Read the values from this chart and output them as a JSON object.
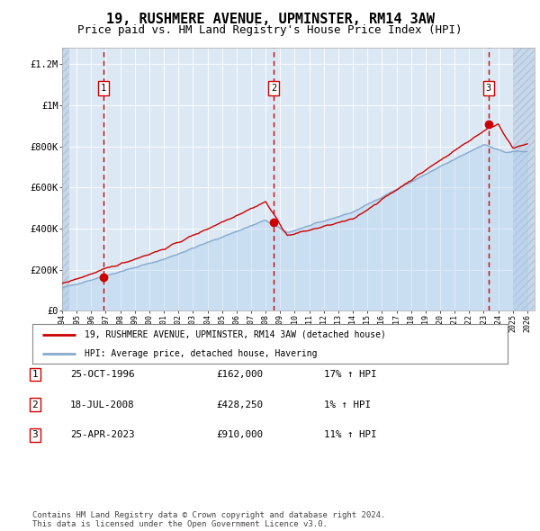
{
  "title": "19, RUSHMERE AVENUE, UPMINSTER, RM14 3AW",
  "subtitle": "Price paid vs. HM Land Registry's House Price Index (HPI)",
  "title_fontsize": 11,
  "subtitle_fontsize": 9,
  "bg_color": "#dce9f5",
  "grid_color": "#ffffff",
  "sale_points": [
    {
      "date_num": 1996.82,
      "price": 162000,
      "label": "1"
    },
    {
      "date_num": 2008.54,
      "price": 428250,
      "label": "2"
    },
    {
      "date_num": 2023.32,
      "price": 910000,
      "label": "3"
    }
  ],
  "sale_label_color": "#cc0000",
  "sale_dot_color": "#cc0000",
  "dashed_line_color": "#cc0000",
  "xmin": 1994.0,
  "xmax": 2026.5,
  "ymin": 0,
  "ymax": 1280000,
  "yticks": [
    0,
    200000,
    400000,
    600000,
    800000,
    1000000,
    1200000
  ],
  "ytick_labels": [
    "£0",
    "£200K",
    "£400K",
    "£600K",
    "£800K",
    "£1M",
    "£1.2M"
  ],
  "legend_entries": [
    "19, RUSHMERE AVENUE, UPMINSTER, RM14 3AW (detached house)",
    "HPI: Average price, detached house, Havering"
  ],
  "legend_colors": [
    "#cc0000",
    "#88aacc"
  ],
  "table_rows": [
    [
      "1",
      "25-OCT-1996",
      "£162,000",
      "17% ↑ HPI"
    ],
    [
      "2",
      "18-JUL-2008",
      "£428,250",
      "1% ↑ HPI"
    ],
    [
      "3",
      "25-APR-2023",
      "£910,000",
      "11% ↑ HPI"
    ]
  ],
  "footer_text": "Contains HM Land Registry data © Crown copyright and database right 2024.\nThis data is licensed under the Open Government Licence v3.0.",
  "hpi_line_color": "#88aacc",
  "price_line_color": "#cc0000"
}
